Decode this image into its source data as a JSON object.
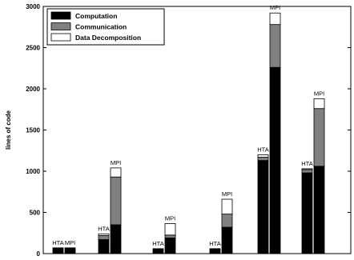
{
  "chart_data": {
    "type": "bar",
    "stacked": true,
    "ylabel": "lines of code",
    "ylim": [
      0,
      3000
    ],
    "yticks": [
      0,
      500,
      1000,
      1500,
      2000,
      2500,
      3000
    ],
    "grid": false,
    "legend_position": "top-left",
    "series": [
      {
        "name": "Computation",
        "color": "#000000"
      },
      {
        "name": "Communication",
        "color": "#808080"
      },
      {
        "name": "Data Decomposition",
        "color": "#ffffff"
      }
    ],
    "groups": [
      {
        "category": "",
        "bars": [
          {
            "label": "HTA",
            "values": [
              70,
              0,
              0
            ]
          },
          {
            "label": "MPI",
            "values": [
              70,
              0,
              0
            ]
          }
        ]
      },
      {
        "category": "",
        "bars": [
          {
            "label": "HTA",
            "values": [
              170,
              50,
              20
            ]
          },
          {
            "label": "MPI",
            "values": [
              350,
              580,
              110
            ]
          }
        ]
      },
      {
        "category": "",
        "bars": [
          {
            "label": "HTA",
            "values": [
              60,
              0,
              0
            ]
          },
          {
            "label": "MPI",
            "values": [
              190,
              35,
              140
            ]
          }
        ]
      },
      {
        "category": "",
        "bars": [
          {
            "label": "HTA",
            "values": [
              60,
              0,
              0
            ]
          },
          {
            "label": "MPI",
            "values": [
              320,
              160,
              180
            ]
          }
        ]
      },
      {
        "category": "",
        "bars": [
          {
            "label": "HTA",
            "values": [
              1130,
              40,
              30
            ]
          },
          {
            "label": "MPI",
            "values": [
              2260,
              520,
              140
            ]
          }
        ]
      },
      {
        "category": "",
        "bars": [
          {
            "label": "HTA",
            "values": [
              980,
              40,
              10
            ]
          },
          {
            "label": "MPI",
            "values": [
              1060,
              700,
              120
            ]
          }
        ]
      }
    ]
  }
}
